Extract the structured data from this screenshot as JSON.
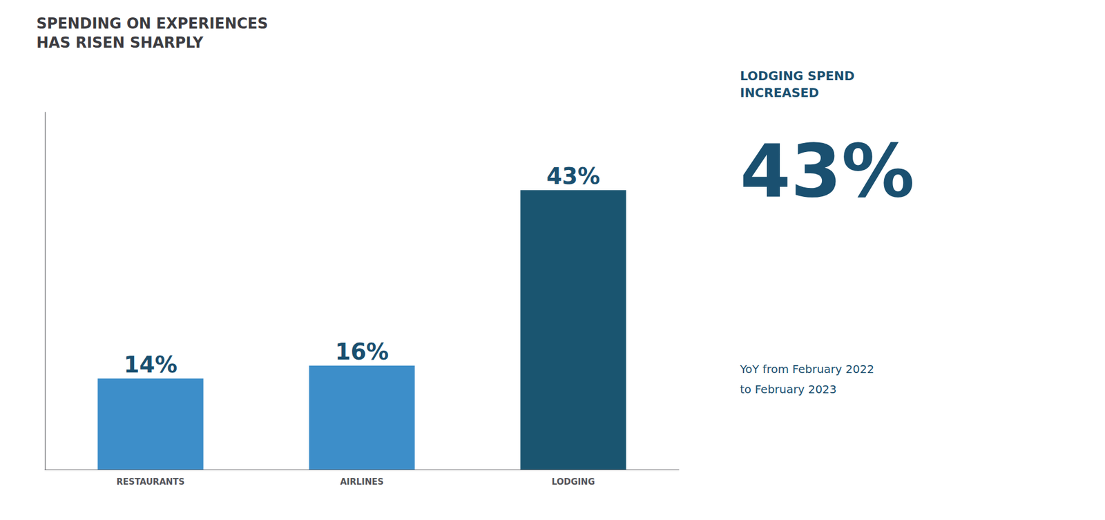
{
  "chart_data": {
    "type": "bar",
    "title": "SPENDING ON EXPERIENCES\nHAS RISEN SHARPLY",
    "categories": [
      "RESTAURANTS",
      "AIRLINES",
      "LODGING"
    ],
    "values": [
      14,
      16,
      43
    ],
    "value_labels": [
      "14%",
      "16%",
      "43%"
    ],
    "colors": [
      "#3d8ec9",
      "#3d8ec9",
      "#1a5570"
    ],
    "ylim": [
      0,
      55
    ],
    "grid": false,
    "data_labels": true,
    "tick_labels": "x",
    "annotations": [
      "LODGING SPEND\nINCREASED",
      "43%",
      "YoY from February 2022\nto February 2023"
    ]
  }
}
